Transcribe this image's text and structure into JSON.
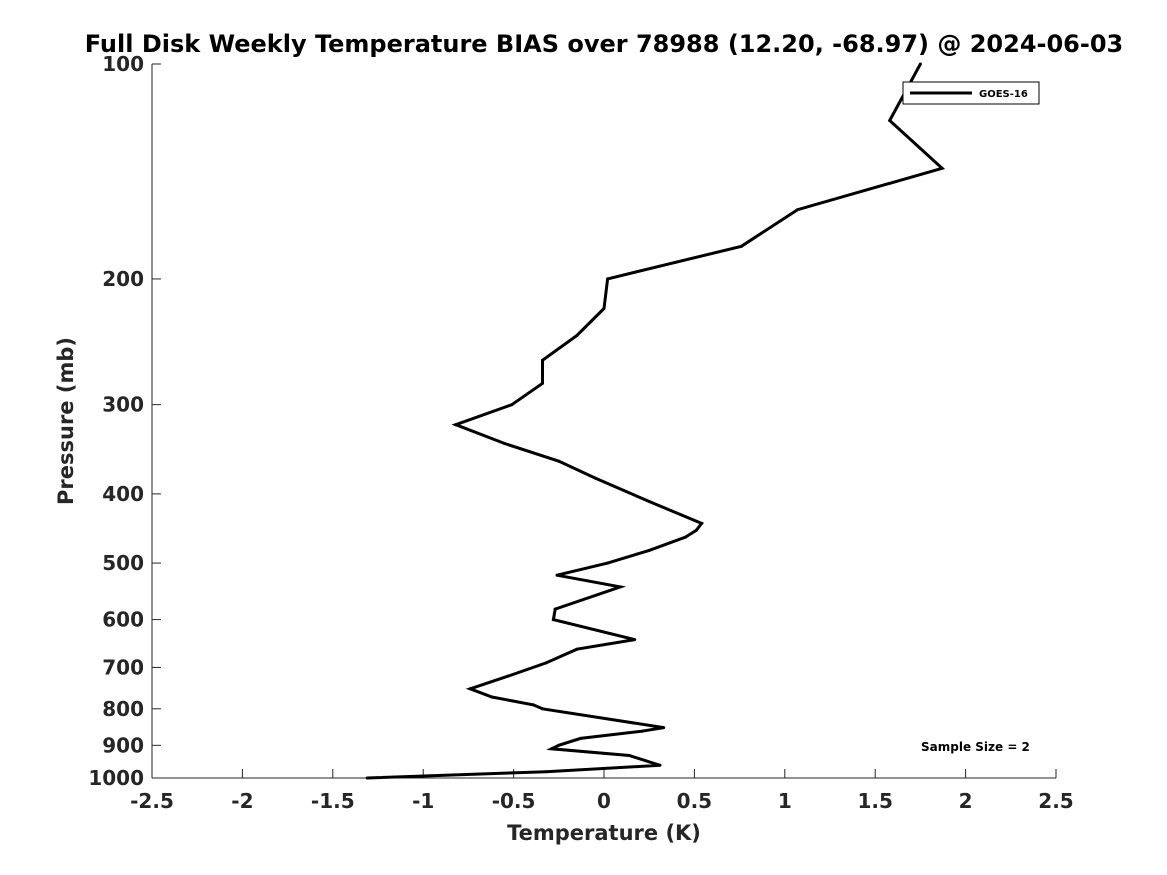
{
  "chart_data": {
    "type": "line",
    "title": "Full Disk Weekly Temperature BIAS over 78988 (12.20, -68.97) @ 2024-06-03",
    "xlabel": "Temperature (K)",
    "ylabel": "Pressure (mb)",
    "xlim": [
      -2.5,
      2.5
    ],
    "ylim": [
      100,
      1000
    ],
    "y_scale": "log",
    "y_reversed": true,
    "x_ticks": [
      "-2.5",
      "-2",
      "-1.5",
      "-1",
      "-0.5",
      "0",
      "0.5",
      "1",
      "1.5",
      "2",
      "2.5"
    ],
    "y_ticks": [
      "100",
      "200",
      "300",
      "400",
      "500",
      "600",
      "700",
      "800",
      "900",
      "1000"
    ],
    "grid": false,
    "legend_position": "top-right",
    "annotation": "Sample Size = 2",
    "series": [
      {
        "name": "GOES-16",
        "color": "#000000",
        "points": [
          {
            "x": 1.75,
            "y": 100
          },
          {
            "x": 1.58,
            "y": 120
          },
          {
            "x": 1.87,
            "y": 140
          },
          {
            "x": 1.07,
            "y": 160
          },
          {
            "x": 0.76,
            "y": 180
          },
          {
            "x": 0.02,
            "y": 200
          },
          {
            "x": 0.0,
            "y": 220
          },
          {
            "x": -0.15,
            "y": 240
          },
          {
            "x": -0.34,
            "y": 260
          },
          {
            "x": -0.34,
            "y": 280
          },
          {
            "x": -0.51,
            "y": 300
          },
          {
            "x": -0.82,
            "y": 320
          },
          {
            "x": -0.55,
            "y": 340
          },
          {
            "x": -0.25,
            "y": 360
          },
          {
            "x": -0.05,
            "y": 380
          },
          {
            "x": 0.25,
            "y": 410
          },
          {
            "x": 0.54,
            "y": 440
          },
          {
            "x": 0.51,
            "y": 450
          },
          {
            "x": 0.45,
            "y": 460
          },
          {
            "x": 0.25,
            "y": 480
          },
          {
            "x": 0.02,
            "y": 500
          },
          {
            "x": -0.26,
            "y": 520
          },
          {
            "x": 0.09,
            "y": 540
          },
          {
            "x": -0.27,
            "y": 580
          },
          {
            "x": -0.28,
            "y": 600
          },
          {
            "x": 0.17,
            "y": 640
          },
          {
            "x": -0.15,
            "y": 660
          },
          {
            "x": -0.32,
            "y": 690
          },
          {
            "x": -0.53,
            "y": 720
          },
          {
            "x": -0.74,
            "y": 750
          },
          {
            "x": -0.62,
            "y": 770
          },
          {
            "x": -0.39,
            "y": 790
          },
          {
            "x": -0.34,
            "y": 800
          },
          {
            "x": 0.33,
            "y": 850
          },
          {
            "x": 0.21,
            "y": 860
          },
          {
            "x": -0.13,
            "y": 880
          },
          {
            "x": -0.25,
            "y": 900
          },
          {
            "x": -0.29,
            "y": 910
          },
          {
            "x": 0.14,
            "y": 930
          },
          {
            "x": 0.31,
            "y": 960
          },
          {
            "x": -0.32,
            "y": 980
          },
          {
            "x": -1.31,
            "y": 1000
          }
        ]
      }
    ]
  }
}
